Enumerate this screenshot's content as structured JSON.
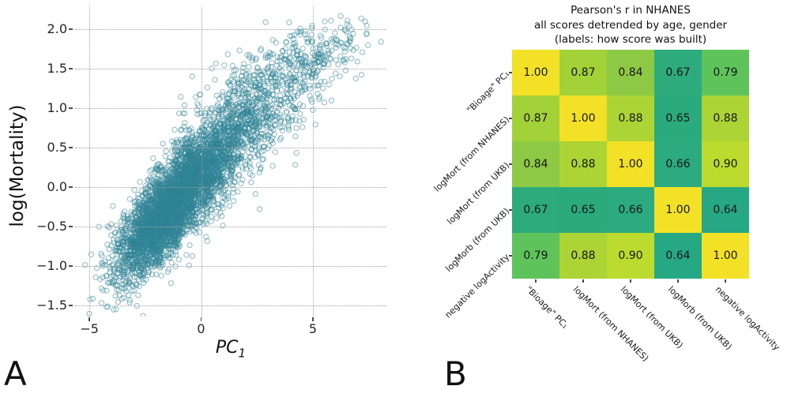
{
  "panels": {
    "a": {
      "label": "A"
    },
    "b": {
      "label": "B"
    }
  },
  "chart_data": [
    {
      "type": "scatter",
      "xlabel_main": "PC",
      "xlabel_sub": "1",
      "ylabel": "log(Mortality)",
      "xlim": [
        -5.64,
        8.29
      ],
      "ylim": [
        -1.64,
        2.29
      ],
      "xticks": [
        -5,
        0,
        5
      ],
      "yticks": [
        2.0,
        1.5,
        1.0,
        0.5,
        0.0,
        -0.5,
        -1.0,
        -1.5
      ],
      "grid": "dotted",
      "legend": "none",
      "marker": {
        "shape": "circle-open",
        "color": "#2f8396",
        "alpha": 0.5,
        "radius": 3.1,
        "stroke": 1.15
      },
      "points_model": {
        "note": "dense positively-correlated cloud of ~5000 open circles from (-5,-1.5) to (7.5,2.1), mode near (-1,-0.2)",
        "seed": 7,
        "n": 5200,
        "clusters": [
          {
            "w": 0.52,
            "mx": -1.7,
            "my": -0.36,
            "sx": 1.05,
            "sy": 0.4,
            "rho": 0.72
          },
          {
            "w": 0.3,
            "mx": 0.1,
            "my": 0.22,
            "sx": 1.15,
            "sy": 0.4,
            "rho": 0.66
          },
          {
            "w": 0.14,
            "mx": 2.3,
            "my": 0.95,
            "sx": 1.35,
            "sy": 0.4,
            "rho": 0.55
          },
          {
            "w": 0.04,
            "mx": 5.0,
            "my": 1.62,
            "sx": 1.25,
            "sy": 0.27,
            "rho": 0.45
          }
        ]
      }
    },
    {
      "type": "heatmap",
      "title_lines": [
        "Pearson's r in NHANES",
        "all scores detrended by age, gender",
        "(labels: how score was built)"
      ],
      "labels": [
        "\"Bioage\" PC₁",
        "logMort (from NHANES)",
        "logMort (from UKB)",
        "logMorb (from UKB)",
        "negative logActivity"
      ],
      "values": [
        [
          1.0,
          0.87,
          0.84,
          0.67,
          0.79
        ],
        [
          0.87,
          1.0,
          0.88,
          0.65,
          0.88
        ],
        [
          0.84,
          0.88,
          1.0,
          0.66,
          0.9
        ],
        [
          0.67,
          0.65,
          0.66,
          1.0,
          0.64
        ],
        [
          0.79,
          0.88,
          0.9,
          0.64,
          1.0
        ]
      ],
      "colormap": {
        "1.00": "#f2e126",
        "0.90": "#bcdb2e",
        "0.88": "#abd434",
        "0.87": "#a3d138",
        "0.84": "#8dc944",
        "0.79": "#5fc35c",
        "0.67": "#2dab7d",
        "0.66": "#2caa80",
        "0.65": "#2baa7e",
        "0.64": "#27a885"
      },
      "text_color": "#161616"
    }
  ]
}
